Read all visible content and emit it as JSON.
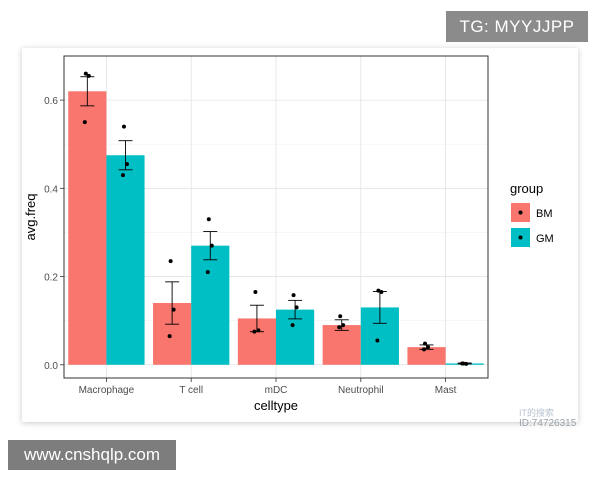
{
  "banners": {
    "top_right": "TG: MYYJJPP",
    "bottom_left": "www.cnshqlp.com"
  },
  "watermark": {
    "logo": "IT的搜索",
    "id": "ID:74726315"
  },
  "chart_data": {
    "type": "bar",
    "title": "",
    "xlabel": "celltype",
    "ylabel": "avg.freq",
    "ylim": [
      -0.03,
      0.7
    ],
    "yticks": [
      0.0,
      0.2,
      0.4,
      0.6
    ],
    "ytick_labels": [
      "0.0",
      "0.2",
      "0.4",
      "0.6"
    ],
    "grid": true,
    "categories": [
      "Macrophage",
      "T cell",
      "mDC",
      "Neutrophil",
      "Mast"
    ],
    "series": [
      {
        "name": "BM",
        "color": "#f8766d",
        "values": [
          0.62,
          0.14,
          0.105,
          0.09,
          0.04
        ],
        "errors": [
          0.033,
          0.048,
          0.03,
          0.012,
          0.005
        ],
        "points": [
          [
            0.66,
            0.655,
            0.55
          ],
          [
            0.235,
            0.125,
            0.065
          ],
          [
            0.165,
            0.078,
            0.075
          ],
          [
            0.11,
            0.09,
            0.085
          ],
          [
            0.048,
            0.04,
            0.035
          ]
        ]
      },
      {
        "name": "GM",
        "color": "#00bfc4",
        "values": [
          0.475,
          0.27,
          0.125,
          0.13,
          0.003
        ],
        "errors": [
          0.033,
          0.032,
          0.021,
          0.036,
          0.001
        ],
        "points": [
          [
            0.54,
            0.455,
            0.43
          ],
          [
            0.33,
            0.27,
            0.21
          ],
          [
            0.158,
            0.13,
            0.09
          ],
          [
            0.168,
            0.165,
            0.055
          ],
          [
            0.003,
            0.002,
            0.003
          ]
        ]
      }
    ],
    "legend": {
      "title": "group",
      "position": "right",
      "items": [
        "BM",
        "GM"
      ]
    }
  }
}
